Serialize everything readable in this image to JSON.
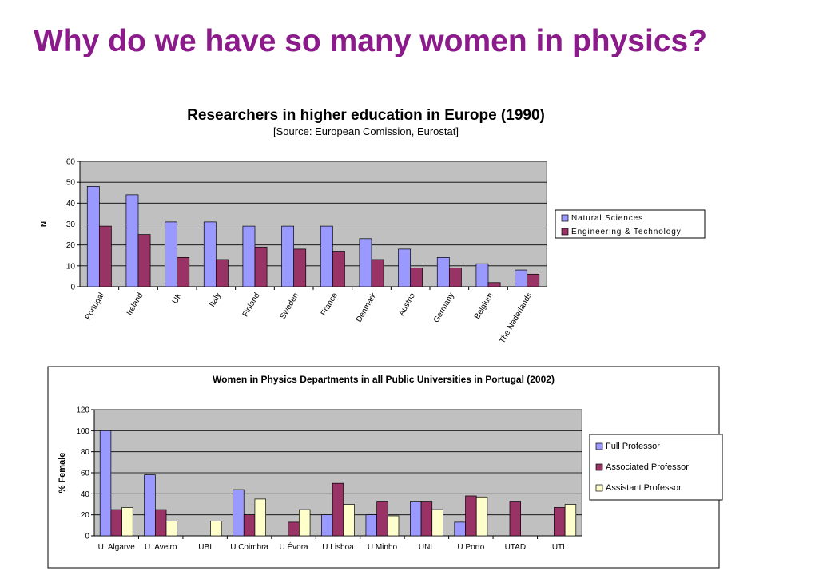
{
  "slide_title": "Why do we have so many women in physics?",
  "colors": {
    "title": "#8b1a8b",
    "plot_bg": "#c0c0c0",
    "natural_sciences": "#9999ff",
    "engineering": "#993366",
    "full_professor": "#9999ff",
    "associated_professor": "#993366",
    "assistant_professor": "#ffffcc"
  },
  "chart_data": [
    {
      "type": "bar",
      "title": "Researchers in higher education in Europe (1990)",
      "subtitle": "[Source: European Comission, Eurostat]",
      "xlabel": "",
      "ylabel": "N",
      "ylim": [
        0,
        60
      ],
      "yticks": [
        0,
        10,
        20,
        30,
        40,
        50,
        60
      ],
      "grid": true,
      "legend_position": "right",
      "categories": [
        "Portugal",
        "Ireland",
        "UK",
        "Italy",
        "Finland",
        "Sweden",
        "France",
        "Denmark",
        "Austria",
        "Germany",
        "Belgium",
        "The Nederlands"
      ],
      "series": [
        {
          "name": "Natural Sciences",
          "color": "#9999ff",
          "values": [
            48,
            44,
            31,
            31,
            29,
            29,
            29,
            23,
            18,
            14,
            11,
            8
          ]
        },
        {
          "name": "Engineering & Technology",
          "color": "#993366",
          "values": [
            29,
            25,
            14,
            13,
            19,
            18,
            17,
            13,
            9,
            9,
            2,
            6
          ]
        }
      ]
    },
    {
      "type": "bar",
      "title": "Women in Physics Departments in all Public Universities in Portugal (2002)",
      "xlabel": "",
      "ylabel": "% Female",
      "ylim": [
        0,
        120
      ],
      "yticks": [
        0,
        20,
        40,
        60,
        80,
        100,
        120
      ],
      "grid": true,
      "legend_position": "right",
      "categories": [
        "U. Algarve",
        "U. Aveiro",
        "UBI",
        "U Coimbra",
        "U Évora",
        "U Lisboa",
        "U Minho",
        "UNL",
        "U Porto",
        "UTAD",
        "UTL"
      ],
      "series": [
        {
          "name": "Full Professor",
          "color": "#9999ff",
          "values": [
            100,
            58,
            0,
            44,
            0,
            20,
            20,
            33,
            13,
            0,
            0
          ]
        },
        {
          "name": "Associated Professor",
          "color": "#993366",
          "values": [
            25,
            25,
            0,
            20,
            13,
            50,
            33,
            33,
            38,
            33,
            27
          ]
        },
        {
          "name": "Assistant Professor",
          "color": "#ffffcc",
          "values": [
            27,
            14,
            14,
            35,
            25,
            30,
            19,
            25,
            37,
            0,
            30
          ]
        }
      ]
    }
  ]
}
